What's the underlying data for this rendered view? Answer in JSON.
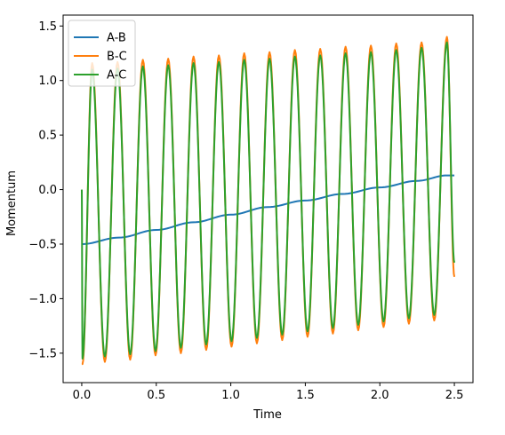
{
  "chart_data": {
    "type": "line",
    "title": "",
    "xlabel": "Time",
    "ylabel": "Momentum",
    "xlim": [
      -0.125,
      2.625
    ],
    "ylim": [
      -1.77,
      1.6
    ],
    "xticks": [
      0.0,
      0.5,
      1.0,
      1.5,
      2.0,
      2.5
    ],
    "xtick_labels": [
      "0.0",
      "0.5",
      "1.0",
      "1.5",
      "2.0",
      "2.5"
    ],
    "yticks": [
      1.5,
      1.0,
      0.5,
      0.0,
      -0.5,
      -1.0,
      -1.5
    ],
    "ytick_labels": [
      "1.5",
      "1.0",
      "0.5",
      "0.0",
      "−0.5",
      "−1.0",
      "−1.5"
    ],
    "grid": false,
    "legend_position": "top-left",
    "series": [
      {
        "name": "A-B",
        "color": "#1f77b4",
        "x": [
          0.0,
          0.25,
          0.5,
          0.75,
          1.0,
          1.25,
          1.5,
          1.75,
          2.0,
          2.25,
          2.45,
          2.5
        ],
        "values": [
          -0.5,
          -0.44,
          -0.37,
          -0.3,
          -0.23,
          -0.16,
          -0.1,
          -0.04,
          0.02,
          0.08,
          0.13,
          0.13
        ]
      },
      {
        "name": "B-C",
        "color": "#ff7f0e",
        "x": [
          0.0,
          0.005,
          0.07,
          0.155,
          0.24,
          0.325,
          0.41,
          0.495,
          0.58,
          0.665,
          0.75,
          0.835,
          0.92,
          1.005,
          1.09,
          1.175,
          1.26,
          1.345,
          1.43,
          1.515,
          1.6,
          1.685,
          1.77,
          1.855,
          1.94,
          2.025,
          2.11,
          2.195,
          2.28,
          2.365,
          2.45,
          2.5
        ],
        "values": [
          -1.6,
          -1.6,
          1.16,
          -1.58,
          1.17,
          -1.56,
          1.19,
          -1.52,
          1.2,
          -1.5,
          1.22,
          -1.47,
          1.23,
          -1.44,
          1.25,
          -1.41,
          1.26,
          -1.38,
          1.28,
          -1.35,
          1.29,
          -1.32,
          1.31,
          -1.29,
          1.32,
          -1.26,
          1.34,
          -1.23,
          1.35,
          -1.2,
          1.4,
          -0.8
        ]
      },
      {
        "name": "A-C",
        "color": "#2ca02c",
        "x": [
          0.0,
          0.005,
          0.07,
          0.155,
          0.24,
          0.325,
          0.41,
          0.495,
          0.58,
          0.665,
          0.75,
          0.835,
          0.92,
          1.005,
          1.09,
          1.175,
          1.26,
          1.345,
          1.43,
          1.515,
          1.6,
          1.685,
          1.77,
          1.855,
          1.94,
          2.025,
          2.11,
          2.195,
          2.28,
          2.365,
          2.45,
          2.5
        ],
        "values": [
          0.0,
          -1.55,
          1.1,
          -1.53,
          1.11,
          -1.51,
          1.13,
          -1.48,
          1.14,
          -1.45,
          1.16,
          -1.42,
          1.17,
          -1.39,
          1.19,
          -1.36,
          1.2,
          -1.33,
          1.22,
          -1.3,
          1.23,
          -1.27,
          1.25,
          -1.24,
          1.26,
          -1.21,
          1.28,
          -1.18,
          1.3,
          -1.15,
          1.35,
          -0.67
        ]
      }
    ]
  }
}
